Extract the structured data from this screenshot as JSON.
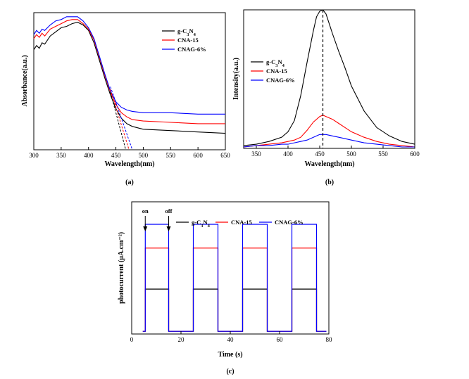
{
  "chart_data": [
    {
      "id": "a",
      "panel_label": "(a)",
      "type": "line",
      "xlabel": "Wavelength(nm)",
      "ylabel": "Absorbance(a.u.)",
      "xlim": [
        300,
        650
      ],
      "ylim": [
        0,
        1
      ],
      "xticks": [
        300,
        350,
        400,
        450,
        500,
        550,
        600,
        650
      ],
      "yticks_shown": false,
      "legend_position": "top-right",
      "series": [
        {
          "name": "g-C3N4",
          "color": "#000000",
          "x": [
            300,
            305,
            310,
            315,
            320,
            330,
            340,
            350,
            360,
            370,
            380,
            390,
            400,
            410,
            420,
            430,
            440,
            450,
            460,
            470,
            480,
            500,
            550,
            600,
            650
          ],
          "y": [
            0.73,
            0.76,
            0.74,
            0.78,
            0.77,
            0.83,
            0.86,
            0.89,
            0.9,
            0.92,
            0.93,
            0.91,
            0.87,
            0.78,
            0.65,
            0.52,
            0.4,
            0.3,
            0.23,
            0.19,
            0.17,
            0.15,
            0.14,
            0.13,
            0.12
          ]
        },
        {
          "name": "CNA-15",
          "color": "#ff0000",
          "x": [
            300,
            305,
            310,
            315,
            320,
            330,
            340,
            350,
            360,
            370,
            380,
            390,
            400,
            410,
            420,
            430,
            440,
            450,
            460,
            470,
            480,
            500,
            550,
            600,
            650
          ],
          "y": [
            0.81,
            0.84,
            0.82,
            0.85,
            0.83,
            0.88,
            0.9,
            0.92,
            0.94,
            0.95,
            0.95,
            0.92,
            0.88,
            0.8,
            0.67,
            0.54,
            0.42,
            0.33,
            0.27,
            0.24,
            0.22,
            0.21,
            0.2,
            0.19,
            0.19
          ]
        },
        {
          "name": "CNAG-6%",
          "color": "#0000ff",
          "x": [
            300,
            305,
            310,
            315,
            320,
            330,
            340,
            350,
            360,
            370,
            380,
            390,
            400,
            410,
            420,
            430,
            440,
            450,
            460,
            470,
            480,
            500,
            550,
            600,
            650
          ],
          "y": [
            0.84,
            0.87,
            0.85,
            0.88,
            0.87,
            0.91,
            0.94,
            0.95,
            0.97,
            0.97,
            0.97,
            0.94,
            0.89,
            0.81,
            0.68,
            0.55,
            0.43,
            0.35,
            0.31,
            0.29,
            0.28,
            0.27,
            0.27,
            0.26,
            0.26
          ]
        }
      ],
      "tangent_lines": [
        {
          "color": "#000000",
          "x": [
            440,
            468
          ],
          "y": [
            0.42,
            0.0
          ]
        },
        {
          "color": "#ff0000",
          "x": [
            440,
            474
          ],
          "y": [
            0.44,
            0.0
          ]
        },
        {
          "color": "#0000ff",
          "x": [
            440,
            480
          ],
          "y": [
            0.46,
            0.0
          ]
        }
      ]
    },
    {
      "id": "b",
      "panel_label": "(b)",
      "type": "line",
      "xlabel": "Wavelength(nm)",
      "ylabel": "Intensity(a.u.)",
      "xlim": [
        330,
        600
      ],
      "ylim": [
        0,
        1
      ],
      "xticks": [
        350,
        400,
        450,
        500,
        550,
        600
      ],
      "yticks_shown": false,
      "legend_position": "left",
      "peak_marker_x": 455,
      "series": [
        {
          "name": "g-C3N4",
          "color": "#000000",
          "x": [
            330,
            350,
            370,
            390,
            400,
            410,
            420,
            430,
            440,
            445,
            450,
            455,
            460,
            465,
            470,
            480,
            490,
            500,
            520,
            540,
            560,
            580,
            600
          ],
          "y": [
            0.02,
            0.03,
            0.05,
            0.08,
            0.12,
            0.2,
            0.38,
            0.62,
            0.85,
            0.95,
            0.99,
            1.0,
            0.97,
            0.9,
            0.83,
            0.7,
            0.58,
            0.45,
            0.27,
            0.15,
            0.09,
            0.05,
            0.03
          ]
        },
        {
          "name": "CNA-15",
          "color": "#ff0000",
          "x": [
            330,
            350,
            370,
            390,
            400,
            410,
            420,
            430,
            440,
            450,
            455,
            460,
            470,
            480,
            490,
            500,
            520,
            540,
            560,
            580,
            600
          ],
          "y": [
            0.01,
            0.02,
            0.03,
            0.04,
            0.05,
            0.06,
            0.08,
            0.13,
            0.19,
            0.23,
            0.24,
            0.23,
            0.21,
            0.18,
            0.15,
            0.12,
            0.08,
            0.05,
            0.03,
            0.02,
            0.01
          ]
        },
        {
          "name": "CNAG-6%",
          "color": "#0000ff",
          "x": [
            330,
            350,
            370,
            390,
            400,
            410,
            420,
            430,
            440,
            450,
            455,
            460,
            470,
            480,
            500,
            520,
            540,
            560,
            580,
            600
          ],
          "y": [
            0.01,
            0.02,
            0.02,
            0.03,
            0.03,
            0.04,
            0.05,
            0.06,
            0.08,
            0.1,
            0.1,
            0.1,
            0.09,
            0.08,
            0.06,
            0.04,
            0.03,
            0.02,
            0.01,
            0.01
          ]
        }
      ]
    },
    {
      "id": "c",
      "panel_label": "(c)",
      "type": "line",
      "xlabel": "Time (s)",
      "ylabel": "photocurrent (μA.cm⁻²)",
      "xlim": [
        0,
        80
      ],
      "ylim": [
        0,
        1
      ],
      "xticks": [
        0,
        20,
        40,
        60,
        80
      ],
      "yticks_shown": false,
      "legend_position": "top",
      "annotations": [
        {
          "text": "on",
          "x": 5.5
        },
        {
          "text": "off",
          "x": 15
        }
      ],
      "light_on_intervals": [
        [
          5.5,
          15
        ],
        [
          25,
          35
        ],
        [
          45,
          55
        ],
        [
          65,
          75
        ]
      ],
      "baseline": 0.02,
      "series": [
        {
          "name": "g-C3N4",
          "color": "#000000",
          "level": 0.34
        },
        {
          "name": "CNA-15",
          "color": "#ff0000",
          "level": 0.65
        },
        {
          "name": "CNAG-6%",
          "color": "#0000ff",
          "level": 0.83
        }
      ]
    }
  ]
}
